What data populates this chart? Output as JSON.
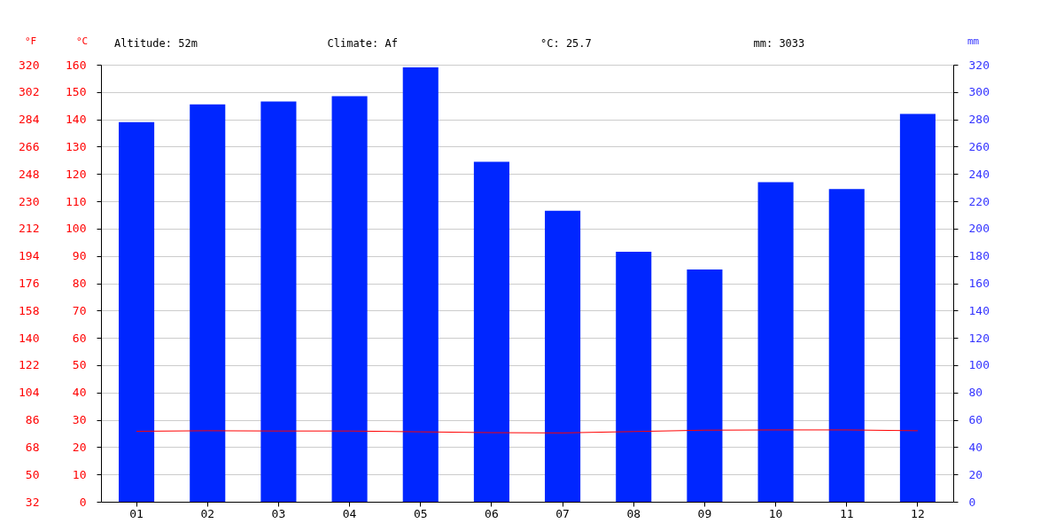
{
  "chart_data": {
    "type": "bar",
    "categories": [
      "01",
      "02",
      "03",
      "04",
      "05",
      "06",
      "07",
      "08",
      "09",
      "10",
      "11",
      "12"
    ],
    "series": [
      {
        "axis": "y2",
        "color": "#0026ff",
        "values": [
          278,
          291,
          293,
          297,
          318,
          249,
          213,
          183,
          170,
          234,
          229,
          284
        ]
      },
      {
        "type": "line",
        "axis": "y",
        "color": "#ff0000",
        "values": [
          25.8,
          26.0,
          25.9,
          25.9,
          25.6,
          25.3,
          25.2,
          25.7,
          26.2,
          26.3,
          26.3,
          26.0
        ]
      }
    ],
    "ylabel": "°C",
    "y2label": "mm",
    "y3label": "°F",
    "ylim": [
      0,
      160
    ],
    "yticks": [
      0,
      10,
      20,
      30,
      40,
      50,
      60,
      70,
      80,
      90,
      100,
      110,
      120,
      130,
      140,
      150,
      160
    ],
    "y2lim": [
      0,
      320
    ],
    "y2ticks": [
      0,
      20,
      40,
      60,
      80,
      100,
      120,
      140,
      160,
      180,
      200,
      220,
      240,
      260,
      280,
      300,
      320
    ],
    "y3lim": [
      32,
      320
    ],
    "y3ticks": [
      32,
      50,
      68,
      86,
      104,
      122,
      140,
      158,
      176,
      194,
      212,
      230,
      248,
      266,
      284,
      302,
      320
    ],
    "annotations": [
      "Altitude: 52m",
      "Climate: Af",
      "°C: 25.7",
      "mm: 3033"
    ],
    "grid": "y",
    "marker": "none",
    "line_style": "solid"
  }
}
